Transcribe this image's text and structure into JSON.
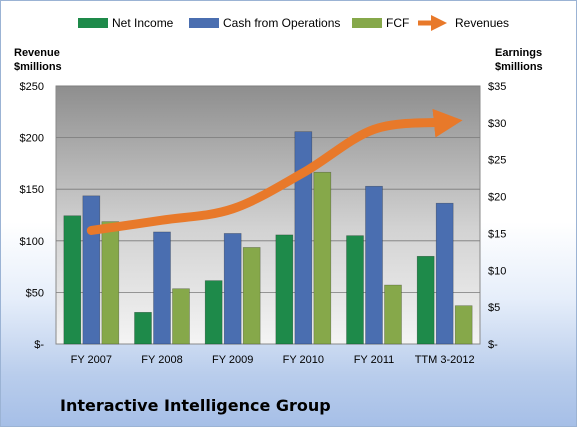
{
  "chart_data": {
    "type": "bar",
    "title": "Interactive Intelligence Group",
    "left_axis_title": [
      "Revenue",
      "$millions"
    ],
    "right_axis_title": [
      "Earnings",
      "$millions"
    ],
    "categories": [
      "FY 2007",
      "FY 2008",
      "FY 2009",
      "FY 2010",
      "FY 2011",
      "TTM 3-2012"
    ],
    "left_ticks": [
      "$-",
      "$50",
      "$100",
      "$150",
      "$200",
      "$250"
    ],
    "right_ticks": [
      "$-",
      "$5",
      "$10",
      "$15",
      "$20",
      "$25",
      "$30",
      "$35"
    ],
    "left_ylim": [
      0,
      250
    ],
    "right_ylim": [
      0,
      35
    ],
    "grid": true,
    "legend_position": "top",
    "series": [
      {
        "name": "Net Income",
        "axis": "right",
        "kind": "bar",
        "color": "#1e8a4a",
        "values": [
          17.4,
          4.3,
          8.6,
          14.8,
          14.7,
          11.9
        ]
      },
      {
        "name": "Cash from Operations",
        "axis": "right",
        "kind": "bar",
        "color": "#4a6eb0",
        "values": [
          20.1,
          15.2,
          15.0,
          28.8,
          21.4,
          19.1
        ]
      },
      {
        "name": "FCF",
        "axis": "right",
        "kind": "bar",
        "color": "#86a84a",
        "values": [
          16.6,
          7.5,
          13.1,
          23.3,
          8.0,
          5.2
        ]
      },
      {
        "name": "Revenues",
        "axis": "left",
        "kind": "line",
        "color": "#e8792a",
        "values": [
          110,
          120,
          131,
          166,
          208,
          215
        ]
      }
    ]
  }
}
